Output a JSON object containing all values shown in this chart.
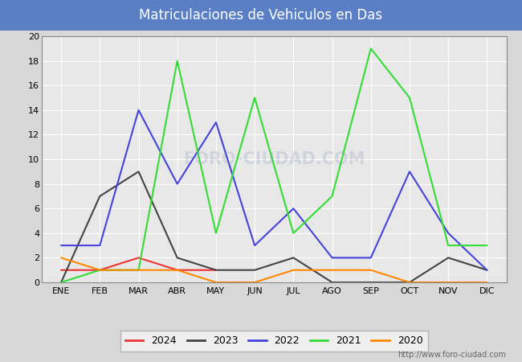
{
  "title": "Matriculaciones de Vehiculos en Das",
  "title_bg_color": "#5b7fc4",
  "title_text_color": "#ffffff",
  "months": [
    "ENE",
    "FEB",
    "MAR",
    "ABR",
    "MAY",
    "JUN",
    "JUL",
    "AGO",
    "SEP",
    "OCT",
    "NOV",
    "DIC"
  ],
  "series": {
    "2024": {
      "values": [
        1,
        1,
        2,
        1,
        1,
        null,
        null,
        null,
        null,
        null,
        null,
        null
      ],
      "color": "#ee3333",
      "linewidth": 1.5
    },
    "2023": {
      "values": [
        0,
        7,
        9,
        2,
        1,
        1,
        2,
        0,
        0,
        0,
        2,
        1
      ],
      "color": "#444444",
      "linewidth": 1.5
    },
    "2022": {
      "values": [
        3,
        3,
        14,
        8,
        13,
        3,
        6,
        2,
        2,
        9,
        4,
        1
      ],
      "color": "#4444dd",
      "linewidth": 1.5
    },
    "2021": {
      "values": [
        0,
        1,
        1,
        18,
        4,
        15,
        4,
        7,
        19,
        15,
        3,
        3
      ],
      "color": "#33dd33",
      "linewidth": 1.5
    },
    "2020": {
      "values": [
        2,
        1,
        1,
        1,
        0,
        0,
        1,
        1,
        1,
        0,
        0,
        0
      ],
      "color": "#ff8800",
      "linewidth": 1.5
    }
  },
  "ylim": [
    0,
    20
  ],
  "yticks": [
    0,
    2,
    4,
    6,
    8,
    10,
    12,
    14,
    16,
    18,
    20
  ],
  "outer_bg_color": "#d8d8d8",
  "plot_bg_color": "#e8e8e8",
  "grid_color": "#ffffff",
  "url": "http://www.foro-ciudad.com"
}
